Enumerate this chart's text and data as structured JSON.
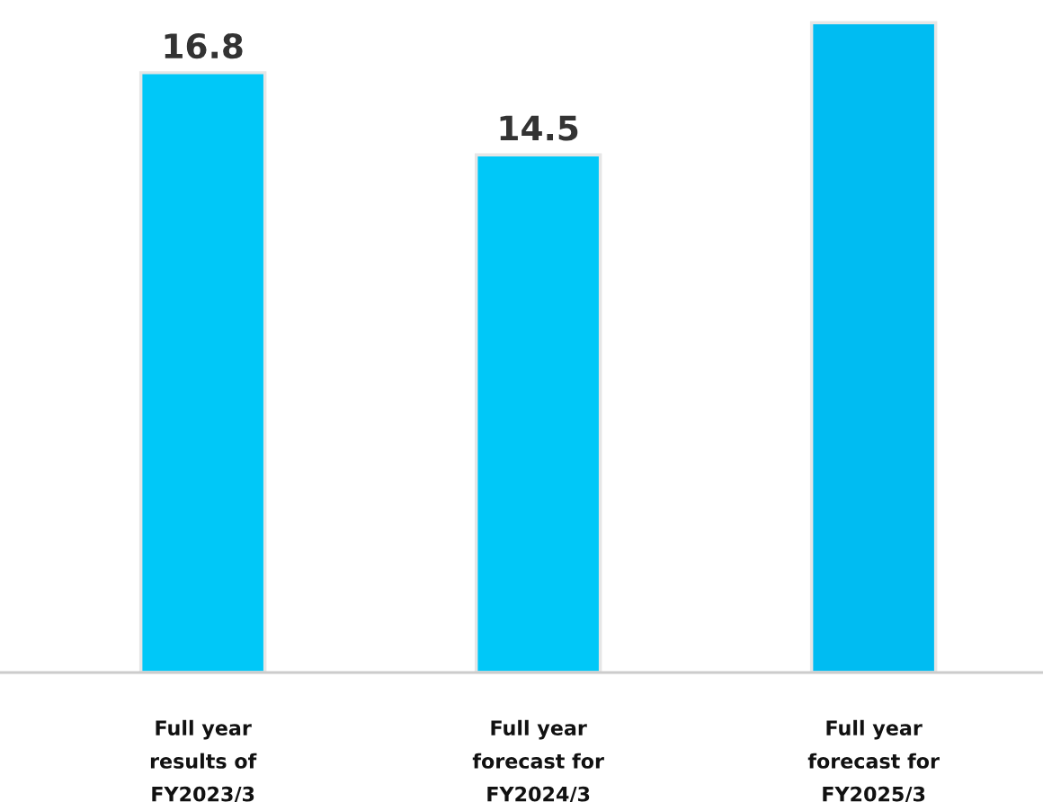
{
  "chart_data": {
    "type": "bar",
    "categories": [
      "Full year\nresults of\nFY2023/3",
      "Full year\nforecast for\nFY2024/3",
      "Full year\nforecast for\nFY2025/3"
    ],
    "values": [
      16.8,
      14.5,
      18.2
    ],
    "colors": [
      "#00c8f8",
      "#00c8f8",
      "#00bcf2"
    ],
    "value_labels": [
      "16.8",
      "14.5",
      null
    ],
    "grid": false,
    "legend": false
  }
}
